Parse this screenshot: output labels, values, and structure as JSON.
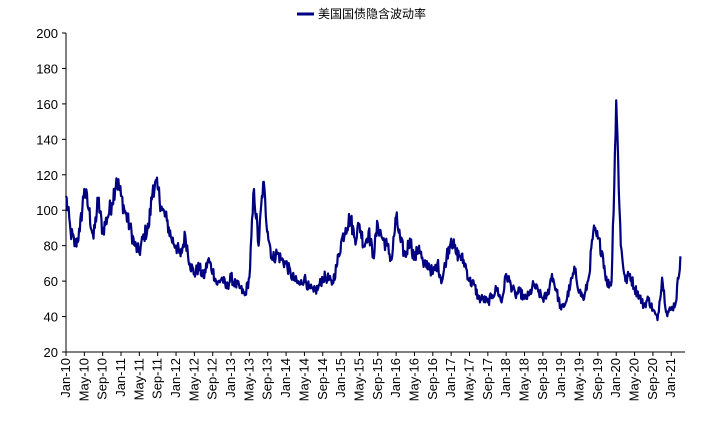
{
  "chart_data": {
    "type": "line",
    "title": "",
    "xlabel": "",
    "ylabel": "",
    "legend": {
      "position": "top-center",
      "entries": [
        "美国国债隐含波动率"
      ]
    },
    "ylim": [
      20,
      200
    ],
    "yticks": [
      20,
      40,
      60,
      80,
      100,
      120,
      140,
      160,
      180,
      200
    ],
    "xlim": [
      "2010-01",
      "2021-04"
    ],
    "xticks": [
      "Jan-10",
      "May-10",
      "Sep-10",
      "Jan-11",
      "May-11",
      "Sep-11",
      "Jan-12",
      "May-12",
      "Sep-12",
      "Jan-13",
      "May-13",
      "Sep-13",
      "Jan-14",
      "May-14",
      "Sep-14",
      "Jan-15",
      "May-15",
      "Sep-15",
      "Jan-16",
      "May-16",
      "Sep-16",
      "Jan-17",
      "May-17",
      "Sep-17",
      "Jan-18",
      "May-18",
      "Sep-18",
      "Jan-19",
      "May-19",
      "Sep-19",
      "Jan-20",
      "May-20",
      "Sep-20",
      "Jan-21"
    ],
    "grid": false,
    "series": [
      {
        "name": "美国国债隐含波动率",
        "color": "#000080",
        "x": [
          "2010-01",
          "2010-02",
          "2010-03",
          "2010-04",
          "2010-05",
          "2010-06",
          "2010-07",
          "2010-08",
          "2010-09",
          "2010-10",
          "2010-11",
          "2010-12",
          "2011-01",
          "2011-02",
          "2011-03",
          "2011-04",
          "2011-05",
          "2011-06",
          "2011-07",
          "2011-08",
          "2011-09",
          "2011-10",
          "2011-11",
          "2011-12",
          "2012-01",
          "2012-02",
          "2012-03",
          "2012-04",
          "2012-05",
          "2012-06",
          "2012-07",
          "2012-08",
          "2012-09",
          "2012-10",
          "2012-11",
          "2012-12",
          "2013-01",
          "2013-02",
          "2013-03",
          "2013-04",
          "2013-05",
          "2013-06",
          "2013-07",
          "2013-08",
          "2013-09",
          "2013-10",
          "2013-11",
          "2013-12",
          "2014-01",
          "2014-02",
          "2014-03",
          "2014-04",
          "2014-05",
          "2014-06",
          "2014-07",
          "2014-08",
          "2014-09",
          "2014-10",
          "2014-11",
          "2014-12",
          "2015-01",
          "2015-02",
          "2015-03",
          "2015-04",
          "2015-05",
          "2015-06",
          "2015-07",
          "2015-08",
          "2015-09",
          "2015-10",
          "2015-11",
          "2015-12",
          "2016-01",
          "2016-02",
          "2016-03",
          "2016-04",
          "2016-05",
          "2016-06",
          "2016-07",
          "2016-08",
          "2016-09",
          "2016-10",
          "2016-11",
          "2016-12",
          "2017-01",
          "2017-02",
          "2017-03",
          "2017-04",
          "2017-05",
          "2017-06",
          "2017-07",
          "2017-08",
          "2017-09",
          "2017-10",
          "2017-11",
          "2017-12",
          "2018-01",
          "2018-02",
          "2018-03",
          "2018-04",
          "2018-05",
          "2018-06",
          "2018-07",
          "2018-08",
          "2018-09",
          "2018-10",
          "2018-11",
          "2018-12",
          "2019-01",
          "2019-02",
          "2019-03",
          "2019-04",
          "2019-05",
          "2019-06",
          "2019-07",
          "2019-08",
          "2019-09",
          "2019-10",
          "2019-11",
          "2019-12",
          "2020-01",
          "2020-02",
          "2020-03",
          "2020-04",
          "2020-05",
          "2020-06",
          "2020-07",
          "2020-08",
          "2020-09",
          "2020-10",
          "2020-11",
          "2020-12",
          "2021-01",
          "2021-02",
          "2021-03"
        ],
        "values": [
          108,
          88,
          80,
          88,
          112,
          100,
          84,
          106,
          88,
          96,
          104,
          118,
          108,
          98,
          90,
          80,
          76,
          86,
          90,
          114,
          112,
          100,
          94,
          84,
          80,
          74,
          86,
          70,
          64,
          68,
          62,
          72,
          66,
          58,
          62,
          56,
          62,
          58,
          56,
          52,
          62,
          112,
          80,
          116,
          88,
          72,
          76,
          72,
          70,
          64,
          60,
          58,
          62,
          56,
          54,
          56,
          62,
          62,
          58,
          68,
          82,
          90,
          96,
          84,
          92,
          80,
          88,
          74,
          92,
          84,
          80,
          72,
          96,
          82,
          74,
          84,
          72,
          80,
          68,
          70,
          64,
          70,
          60,
          74,
          84,
          76,
          74,
          70,
          60,
          58,
          50,
          50,
          48,
          52,
          56,
          48,
          64,
          58,
          52,
          54,
          50,
          52,
          58,
          54,
          50,
          52,
          64,
          54,
          44,
          48,
          58,
          66,
          54,
          50,
          62,
          88,
          84,
          76,
          58,
          60,
          162,
          80,
          60,
          64,
          56,
          52,
          46,
          50,
          44,
          38,
          62,
          42,
          44,
          48,
          74
        ]
      }
    ]
  }
}
